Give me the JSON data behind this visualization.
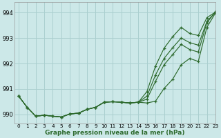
{
  "title": "Graphe pression niveau de la mer (hPa)",
  "bg_color": "#cce8e8",
  "grid_color": "#aacfcf",
  "line_color": "#2d6a2d",
  "xlim": [
    -0.5,
    23
  ],
  "ylim": [
    989.65,
    994.4
  ],
  "yticks": [
    990,
    991,
    992,
    993,
    994
  ],
  "xticks": [
    0,
    1,
    2,
    3,
    4,
    5,
    6,
    7,
    8,
    9,
    10,
    11,
    12,
    13,
    14,
    15,
    16,
    17,
    18,
    19,
    20,
    21,
    22,
    23
  ],
  "line1": [
    990.72,
    990.28,
    989.93,
    989.97,
    989.93,
    989.9,
    990.02,
    990.05,
    990.2,
    990.28,
    990.48,
    990.5,
    990.48,
    990.45,
    990.48,
    990.45,
    990.52,
    991.02,
    991.38,
    991.95,
    992.2,
    992.08,
    993.42,
    993.98
  ],
  "line2": [
    990.72,
    990.28,
    989.93,
    989.97,
    989.93,
    989.9,
    990.02,
    990.05,
    990.2,
    990.28,
    990.48,
    990.5,
    990.48,
    990.45,
    990.48,
    990.6,
    991.3,
    991.95,
    992.35,
    992.75,
    992.55,
    992.45,
    993.6,
    994.02
  ],
  "line3": [
    990.72,
    990.28,
    989.93,
    989.97,
    989.93,
    989.9,
    990.02,
    990.05,
    990.2,
    990.28,
    990.48,
    990.5,
    990.48,
    990.45,
    990.48,
    990.72,
    991.55,
    992.2,
    992.62,
    993.0,
    992.82,
    992.72,
    993.65,
    994.02
  ],
  "line4": [
    990.72,
    990.28,
    989.93,
    989.97,
    989.93,
    989.9,
    990.02,
    990.05,
    990.2,
    990.28,
    990.48,
    990.5,
    990.48,
    990.45,
    990.48,
    990.9,
    991.9,
    992.6,
    993.05,
    993.42,
    993.18,
    993.1,
    993.8,
    994.02
  ]
}
